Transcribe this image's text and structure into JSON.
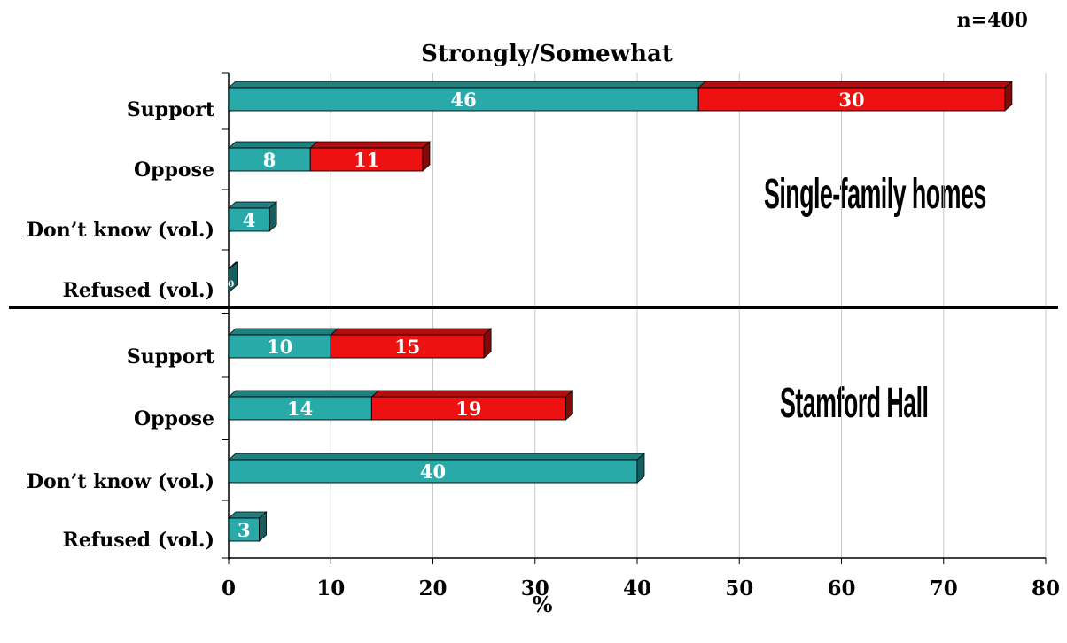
{
  "sample_note": "n=400",
  "chart_data": {
    "type": "bar",
    "orientation": "horizontal",
    "stacked": true,
    "title": "Strongly/Somewhat",
    "xlabel": "%",
    "xlim": [
      0,
      80
    ],
    "xticks": [
      0,
      10,
      20,
      30,
      40,
      50,
      60,
      70,
      80
    ],
    "grid": true,
    "colors": {
      "strongly": "#2aa9a9",
      "somewhat": "#ee1111"
    },
    "panels": [
      {
        "label": "Single-family homes",
        "categories": [
          "Support",
          "Oppose",
          "Don’t know (vol.)",
          "Refused (vol.)"
        ],
        "strongly": [
          46,
          8,
          4,
          0
        ],
        "somewhat": [
          30,
          11,
          null,
          null
        ],
        "data_labels_strongly": [
          "46",
          "8",
          "4",
          "0"
        ],
        "data_labels_somewhat": [
          "30",
          "11",
          "",
          ""
        ]
      },
      {
        "label": "Stamford Hall",
        "categories": [
          "Support",
          "Oppose",
          "Don’t know (vol.)",
          "Refused (vol.)"
        ],
        "strongly": [
          10,
          14,
          40,
          3
        ],
        "somewhat": [
          15,
          19,
          null,
          null
        ],
        "data_labels_strongly": [
          "10",
          "14",
          "40",
          "3"
        ],
        "data_labels_somewhat": [
          "15",
          "19",
          "",
          ""
        ]
      }
    ]
  }
}
